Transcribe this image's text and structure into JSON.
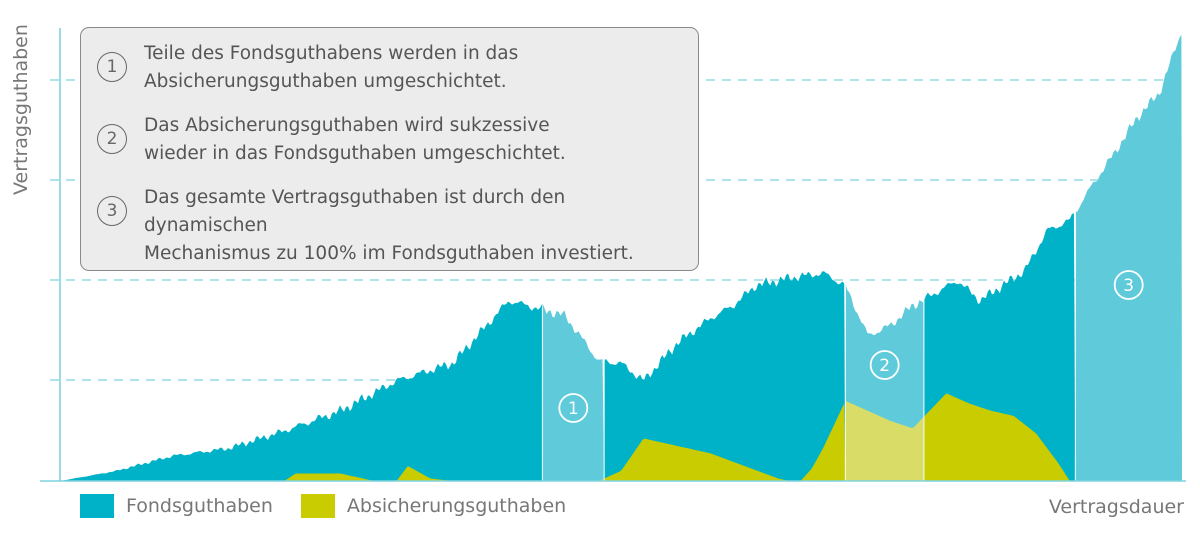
{
  "chart_data": {
    "type": "area",
    "xlabel": "Vertragsdauer",
    "ylabel": "Vertragsguthaben",
    "grid": "dashed horizontal",
    "colors": {
      "fonds": "#00b2c8",
      "fonds_phase": "#5fcbda",
      "absicherung": "#c8cc00",
      "absicherung_phase": "#d9dc66",
      "grid": "#7fd3de"
    },
    "series": [
      {
        "name": "Fondsguthaben",
        "x": [
          0,
          5,
          10,
          15,
          20,
          25,
          30,
          35,
          40,
          45,
          48,
          50,
          52,
          55,
          58,
          60,
          62,
          65,
          68,
          70,
          72,
          74,
          76,
          78,
          80,
          82,
          84,
          86,
          88,
          90,
          92,
          94,
          96,
          98,
          100
        ],
        "values": [
          0,
          4,
          10,
          13,
          20,
          28,
          40,
          47,
          72,
          66,
          48,
          47,
          40,
          55,
          65,
          70,
          78,
          81,
          83,
          78,
          58,
          62,
          70,
          75,
          80,
          72,
          78,
          84,
          100,
          104,
          118,
          131,
          145,
          155,
          180
        ]
      },
      {
        "name": "Absicherungsguthaben",
        "x": [
          0,
          20,
          21,
          25,
          28,
          30,
          31,
          33,
          35,
          38,
          41,
          43,
          45,
          47,
          48,
          50,
          52,
          55,
          58,
          61,
          64,
          65,
          66,
          67,
          68,
          70,
          72,
          74,
          76,
          79,
          81,
          83,
          85,
          87,
          89,
          90,
          100
        ],
        "values": [
          0,
          0,
          3,
          3,
          0,
          0,
          6,
          1,
          0,
          0,
          0,
          0,
          0,
          0,
          0,
          4,
          17,
          14,
          11,
          6,
          1,
          0,
          0,
          5,
          13,
          32,
          28,
          24,
          21,
          35,
          31,
          28,
          26,
          19,
          7,
          0,
          0
        ]
      }
    ],
    "phases": [
      {
        "label": "1",
        "x_start": 43,
        "x_end": 48.5
      },
      {
        "label": "2",
        "x_start": 70,
        "x_end": 77
      },
      {
        "label": "3",
        "x_start": 90.5,
        "x_end": 100
      }
    ],
    "ylim": [
      0,
      180
    ],
    "xlim": [
      0,
      100
    ]
  },
  "legend": [
    {
      "label": "Fondsguthaben",
      "color": "#00b2c8"
    },
    {
      "label": "Absicherungsguthaben",
      "color": "#c8cc00"
    }
  ],
  "info": [
    {
      "num": "1",
      "text": "Teile des Fondsguthabens werden in das\nAbsicherungsguthaben umgeschichtet."
    },
    {
      "num": "2",
      "text": "Das Absicherungsguthaben wird sukzessive\nwieder in das Fondsguthaben umgeschichtet."
    },
    {
      "num": "3",
      "text": "Das gesamte Vertragsguthaben ist durch den dynamischen\nMechanismus zu 100% im Fondsguthaben investiert."
    }
  ]
}
